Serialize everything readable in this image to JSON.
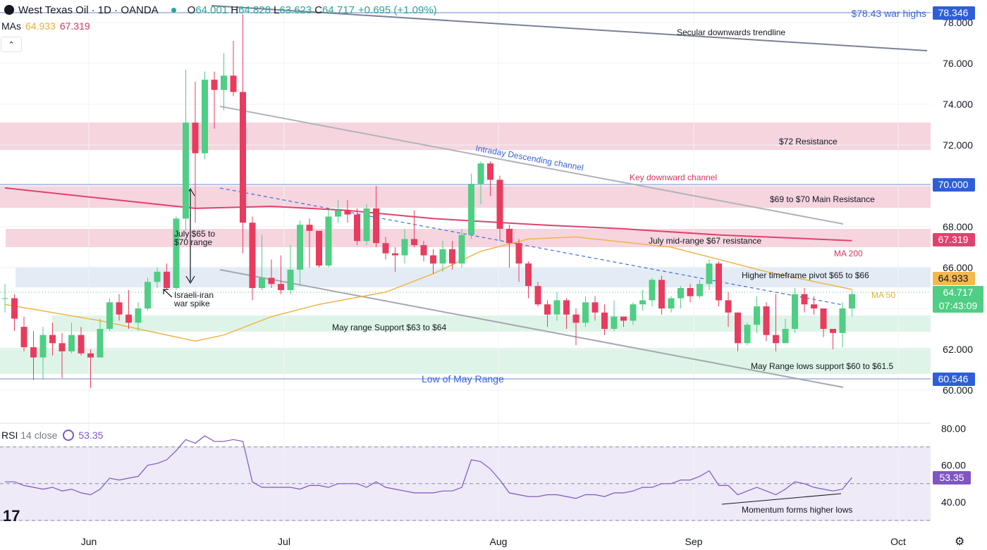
{
  "header": {
    "title": "West Texas Oil · 1D · OANDA",
    "o_label": "O",
    "o": "64.001",
    "h_label": "H",
    "h": "64.828",
    "l_label": "L",
    "l": "63.623",
    "c_label": "C",
    "c": "64.717",
    "change": "+0.695 (+1.09%)"
  },
  "mas": {
    "label": "MAs",
    "ma50": "64.933",
    "ma200": "67.319"
  },
  "rsi": {
    "label": "RSI",
    "params": "14 close",
    "value": "53.35"
  },
  "colors": {
    "up": "#4fce84",
    "down": "#e83c5e",
    "ma50": "#f0b54a",
    "ma200": "#e0426e",
    "rsi": "#7e57c2",
    "accent": "#2962ff"
  },
  "chart_data": [
    {
      "type": "candlestick",
      "title": "West Texas Oil · 1D · OANDA",
      "ylim": [
        59.3,
        78.6
      ],
      "y_ticks": [
        "60.000",
        "62.000",
        "64.000",
        "66.000",
        "68.000",
        "70.000",
        "72.000",
        "74.000",
        "76.000",
        "78.000"
      ],
      "x_ticks": [
        "Jun",
        "Jul",
        "Aug",
        "Sep",
        "Oct"
      ],
      "candles": [
        [
          64.5,
          64.5,
          65.2,
          63.8
        ],
        [
          64.5,
          63.5,
          64.7,
          62.9
        ],
        [
          63.1,
          62.1,
          63.6,
          61.9
        ],
        [
          62.1,
          61.6,
          62.9,
          60.5
        ],
        [
          61.6,
          62.7,
          63.1,
          60.5
        ],
        [
          62.7,
          62.3,
          63.3,
          61.7
        ],
        [
          62.3,
          61.9,
          62.8,
          60.6
        ],
        [
          61.9,
          62.7,
          63.3,
          61.8
        ],
        [
          62.7,
          61.8,
          63.1,
          61.7
        ],
        [
          61.8,
          61.6,
          62.0,
          60.1
        ],
        [
          61.6,
          63.0,
          63.5,
          61.6
        ],
        [
          63.0,
          64.3,
          64.5,
          62.9
        ],
        [
          64.3,
          63.7,
          64.7,
          63.4
        ],
        [
          63.7,
          63.3,
          64.9,
          63.0
        ],
        [
          63.3,
          64.0,
          64.3,
          62.9
        ],
        [
          64.0,
          65.3,
          65.5,
          63.9
        ],
        [
          65.3,
          65.8,
          66.0,
          65.0
        ],
        [
          65.8,
          65.0,
          66.2,
          64.9
        ],
        [
          65.0,
          68.4,
          68.5,
          64.9
        ],
        [
          68.4,
          73.1,
          75.7,
          67.8
        ],
        [
          73.1,
          71.6,
          75.1,
          68.2
        ],
        [
          71.6,
          75.2,
          75.6,
          71.3
        ],
        [
          75.2,
          74.7,
          75.6,
          72.8
        ],
        [
          74.7,
          75.4,
          76.5,
          73.7
        ],
        [
          75.4,
          74.6,
          77.1,
          74.4
        ],
        [
          74.6,
          68.2,
          78.4,
          66.7
        ],
        [
          68.2,
          65.0,
          68.5,
          64.4
        ],
        [
          65.0,
          65.5,
          67.6,
          64.9
        ],
        [
          65.5,
          65.2,
          66.4,
          65.0
        ],
        [
          65.2,
          64.9,
          66.6,
          64.7
        ],
        [
          64.9,
          65.9,
          67.1,
          64.7
        ],
        [
          65.9,
          68.1,
          68.3,
          65.1
        ],
        [
          68.1,
          67.8,
          68.4,
          66.0
        ],
        [
          67.8,
          66.1,
          67.8,
          66.0
        ],
        [
          66.1,
          68.5,
          68.8,
          66.0
        ],
        [
          68.5,
          68.8,
          69.3,
          68.2
        ],
        [
          68.8,
          68.6,
          69.3,
          68.2
        ],
        [
          68.6,
          67.3,
          68.9,
          67.1
        ],
        [
          67.3,
          68.9,
          69.1,
          67.1
        ],
        [
          68.9,
          67.2,
          70.0,
          67.0
        ],
        [
          67.2,
          66.7,
          67.5,
          66.4
        ],
        [
          66.7,
          66.6,
          67.0,
          65.8
        ],
        [
          66.6,
          67.4,
          67.9,
          66.2
        ],
        [
          67.4,
          67.1,
          68.8,
          67.0
        ],
        [
          67.1,
          66.6,
          67.3,
          66.3
        ],
        [
          66.6,
          66.2,
          66.9,
          65.7
        ],
        [
          66.2,
          66.9,
          67.3,
          65.8
        ],
        [
          66.9,
          66.2,
          67.3,
          65.9
        ],
        [
          66.2,
          67.6,
          67.9,
          66.0
        ],
        [
          67.6,
          70.1,
          70.6,
          67.4
        ],
        [
          70.1,
          71.1,
          71.2,
          69.1
        ],
        [
          71.1,
          70.3,
          71.2,
          69.5
        ],
        [
          70.3,
          67.9,
          70.5,
          67.3
        ],
        [
          67.9,
          67.2,
          68.1,
          66.0
        ],
        [
          67.2,
          66.2,
          67.4,
          65.3
        ],
        [
          66.2,
          65.1,
          66.3,
          64.5
        ],
        [
          65.1,
          64.2,
          65.3,
          64.1
        ],
        [
          64.2,
          63.7,
          64.4,
          63.1
        ],
        [
          63.7,
          64.4,
          64.8,
          63.4
        ],
        [
          64.4,
          63.7,
          64.5,
          63.0
        ],
        [
          63.7,
          63.3,
          64.0,
          62.2
        ],
        [
          63.3,
          64.3,
          64.6,
          63.1
        ],
        [
          64.3,
          63.8,
          64.6,
          63.4
        ],
        [
          63.8,
          63.0,
          64.2,
          62.7
        ],
        [
          63.0,
          63.6,
          64.4,
          62.9
        ],
        [
          63.6,
          63.4,
          63.6,
          63.1
        ],
        [
          63.4,
          64.2,
          64.3,
          63.2
        ],
        [
          64.2,
          64.4,
          64.9,
          63.9
        ],
        [
          64.4,
          65.4,
          65.5,
          64.1
        ],
        [
          65.4,
          64.0,
          65.6,
          63.7
        ],
        [
          64.0,
          64.5,
          64.6,
          63.8
        ],
        [
          64.5,
          65.0,
          65.1,
          64.0
        ],
        [
          65.0,
          64.6,
          65.2,
          64.3
        ],
        [
          64.6,
          65.2,
          65.4,
          64.5
        ],
        [
          65.2,
          66.2,
          66.4,
          64.9
        ],
        [
          66.2,
          64.4,
          66.3,
          64.1
        ],
        [
          64.4,
          63.8,
          64.8,
          63.1
        ],
        [
          63.8,
          62.3,
          63.8,
          61.9
        ],
        [
          62.3,
          63.2,
          63.3,
          62.2
        ],
        [
          63.2,
          64.1,
          64.6,
          62.8
        ],
        [
          64.1,
          62.7,
          64.3,
          62.4
        ],
        [
          62.7,
          62.3,
          64.7,
          61.9
        ],
        [
          62.3,
          63.0,
          63.5,
          62.3
        ],
        [
          63.0,
          64.7,
          65.0,
          62.8
        ],
        [
          64.7,
          64.2,
          65.0,
          63.8
        ],
        [
          64.2,
          64.0,
          64.6,
          63.7
        ],
        [
          64.0,
          63.0,
          64.0,
          62.6
        ],
        [
          63.0,
          62.8,
          63.0,
          62.0
        ],
        [
          62.8,
          64.0,
          64.3,
          62.1
        ],
        [
          64.0,
          64.7,
          64.9,
          63.6
        ]
      ]
    },
    {
      "type": "line",
      "name": "MA 50",
      "ylim": [
        59.3,
        78.6
      ],
      "x": [
        0,
        10,
        20,
        23,
        28,
        33,
        40,
        45,
        50,
        55,
        60,
        70,
        80,
        89
      ],
      "values": [
        64.2,
        63.4,
        62.4,
        62.7,
        63.6,
        64.2,
        64.8,
        65.7,
        66.8,
        67.4,
        67.5,
        67.0,
        65.8,
        64.93
      ]
    },
    {
      "type": "line",
      "name": "MA 200",
      "ylim": [
        59.3,
        78.6
      ],
      "x": [
        0,
        10,
        20,
        28,
        36,
        45,
        56,
        65,
        75,
        89
      ],
      "values": [
        69.9,
        69.4,
        68.9,
        69.0,
        68.8,
        68.4,
        68.1,
        67.9,
        67.6,
        67.319
      ]
    },
    {
      "type": "line",
      "name": "RSI",
      "ylim": [
        30,
        82
      ],
      "y_ticks": [
        "40.00",
        "60.00",
        "80.00"
      ],
      "levels": [
        30,
        50,
        70
      ],
      "values": [
        51,
        51,
        49,
        48,
        47,
        48,
        46,
        47,
        45,
        44,
        47,
        53,
        52,
        53,
        54,
        60,
        61,
        63,
        68,
        74,
        72,
        76,
        73,
        73,
        74,
        73,
        51,
        48,
        48,
        48,
        48,
        47,
        49,
        49,
        48,
        50,
        50,
        50,
        48,
        51,
        48,
        47,
        46,
        45,
        45,
        45,
        46,
        46,
        48,
        63,
        62,
        58,
        52,
        45,
        44,
        43,
        43,
        44,
        44,
        43,
        42,
        44,
        44,
        43,
        45,
        45,
        46,
        48,
        48,
        50,
        50,
        52,
        52,
        54,
        57,
        49,
        49,
        44,
        46,
        48,
        46,
        44,
        47,
        51,
        50,
        48,
        47,
        46,
        47,
        53.35
      ]
    }
  ],
  "annotations": {
    "war_highs_label": "$78.43 war highs",
    "secular_label": "Secular downwards trendline",
    "r72_label": "$72 Resistance",
    "intraday_label": "Intraday Descending channel",
    "key_channel_label": "Key downward channel",
    "r6970_label": "$69 to $70 Main Resistance",
    "july_range_label_1": "July $65 to",
    "july_range_label_2": "$70 range",
    "july_mid_label": "July mid-range $67 resistance",
    "ma200_label": "MA 200",
    "pivot_label": "Higher timeframe pivot $65 to $66",
    "israel_label_1": "Israeli-iran",
    "israel_label_2": "war spike",
    "ma50_label": "MA 50",
    "may_support_label": "May range Support $63 to $64",
    "may_lows_label": "May Range lows support $60 to $61.5",
    "low_may_label": "Low of May Range",
    "momentum_label": "Momentum forms higher lows"
  },
  "price_scale_tags": {
    "high_tag": "78.346",
    "level70_tag": "70.000",
    "ma200_tag": "67.319",
    "ma50_tag": "64.933",
    "last_tag": "64.717",
    "countdown_tag": "07:43:09",
    "low_tag": "60.546",
    "rsi_tag": "53.35"
  }
}
